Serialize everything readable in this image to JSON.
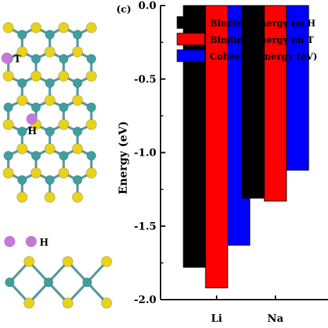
{
  "panel_label": "(c)",
  "structure": {
    "site_labels": [
      "T",
      "H",
      "H"
    ],
    "colors": {
      "metal": "#3f9f9f",
      "chalcogen": "#e8d21a",
      "adatom": "#c27ad6",
      "bond": "#5a9a9a"
    }
  },
  "chart_data": {
    "type": "bar",
    "categories": [
      "Li",
      "Na"
    ],
    "ylabel": "Energy (eV)",
    "xlabel": "",
    "ylim": [
      -2.0,
      0.0
    ],
    "yticks": [
      "0.0",
      "-0.5",
      "-1.0",
      "-1.5",
      "-2.0"
    ],
    "grid": false,
    "legend_position": "top-right",
    "series": [
      {
        "name": "Binding Energy on H",
        "color": "#000000",
        "values": [
          -1.78,
          -1.31
        ]
      },
      {
        "name": "Binding Energy on T",
        "color": "#ff0000",
        "values": [
          -1.92,
          -1.33
        ]
      },
      {
        "name": "Cohesive Energy (eV)",
        "color": "#0000ff",
        "values": [
          -1.63,
          -1.12
        ]
      }
    ]
  }
}
